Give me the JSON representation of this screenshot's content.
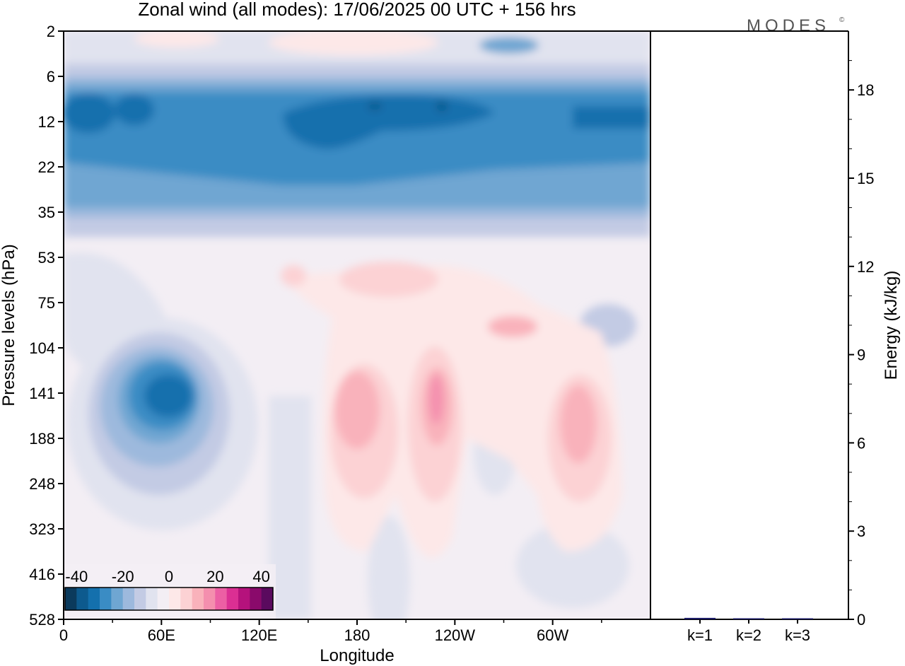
{
  "chart_data": [
    {
      "type": "heatmap",
      "title": "Zonal wind (all modes):  17/06/2025  00 UTC  + 156 hrs",
      "xlabel": "Longitude",
      "ylabel": "Pressure levels (hPa)",
      "x_ticks": [
        "0",
        "60E",
        "120E",
        "180",
        "120W",
        "60W"
      ],
      "y_ticks": [
        "2",
        "6",
        "12",
        "22",
        "35",
        "53",
        "75",
        "104",
        "141",
        "188",
        "248",
        "323",
        "416",
        "528"
      ],
      "colorbar": {
        "tick_labels": [
          "-40",
          "-20",
          "0",
          "20",
          "40"
        ],
        "range": [
          -45,
          45
        ],
        "step": 5,
        "colors": [
          "#0b3a5c",
          "#0d5a8e",
          "#1470ad",
          "#3a8cc4",
          "#6fa6d2",
          "#9db9dd",
          "#c3cbe4",
          "#e1e3ef",
          "#f3eef4",
          "#fde8e8",
          "#fcd2d4",
          "#f9b2bb",
          "#f48fae",
          "#ec5fa4",
          "#db2f93",
          "#b5127c",
          "#8a0a6b",
          "#5a0a5e"
        ]
      },
      "features": [
        {
          "label": "stratospheric easterly jet",
          "lon_range": [
            0,
            360
          ],
          "level_range": [
            6,
            35
          ],
          "value": -30
        },
        {
          "label": "easterly core",
          "lon_range": [
            45,
            95
          ],
          "level_range": [
            104,
            248
          ],
          "value": -35
        },
        {
          "label": "westerly maximum",
          "lon_range": [
            160,
            205
          ],
          "level_range": [
            104,
            323
          ],
          "value": 15
        },
        {
          "label": "westerly maximum",
          "lon_range": [
            210,
            240
          ],
          "level_range": [
            104,
            323
          ],
          "value": 20
        },
        {
          "label": "westerly maximum",
          "lon_range": [
            300,
            335
          ],
          "level_range": [
            104,
            323
          ],
          "value": 15
        }
      ]
    },
    {
      "type": "bar",
      "categories": [
        "k=1",
        "k=2",
        "k=3"
      ],
      "values": [
        0.05,
        0.02,
        0.01
      ],
      "ylabel": "Energy (kJ/kg)",
      "y_ticks": [
        "0",
        "3",
        "6",
        "9",
        "12",
        "15",
        "18"
      ],
      "ylim": [
        0,
        20
      ]
    }
  ],
  "logo": {
    "text": "MODES",
    "mark": "©"
  },
  "colors": {
    "axis": "#000000",
    "bar": "#1a1a66"
  }
}
